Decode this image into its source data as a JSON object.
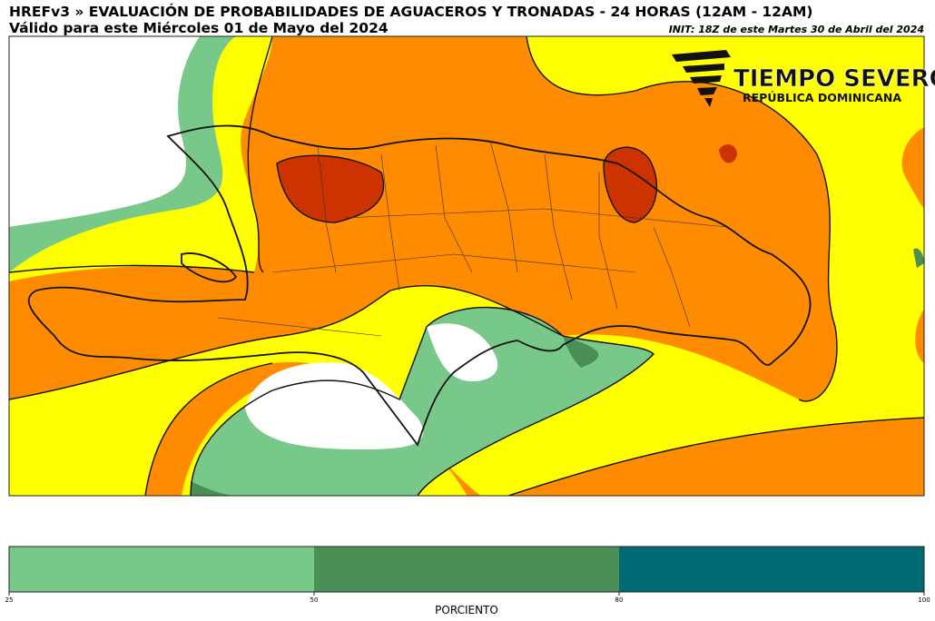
{
  "header": {
    "title": "HREFv3 » EVALUACIÓN DE PROBABILIDADES DE AGUACEROS Y TRONADAS - 24 HORAS (12AM - 12AM)",
    "valid": "Válido para este Miércoles 01 de Mayo del 2024",
    "init": "INIT: 18Z de este Martes 30 de Abril del 2024"
  },
  "logo": {
    "name": "TIEMPO SEVERO",
    "country": "REPÚBLICA DOMINICANA"
  },
  "colorbar": {
    "label": "PORCIENTO",
    "ticks": [
      25,
      50,
      80,
      100
    ],
    "colors": [
      "#78c88a",
      "#4a8f55",
      "#006973"
    ]
  }
}
